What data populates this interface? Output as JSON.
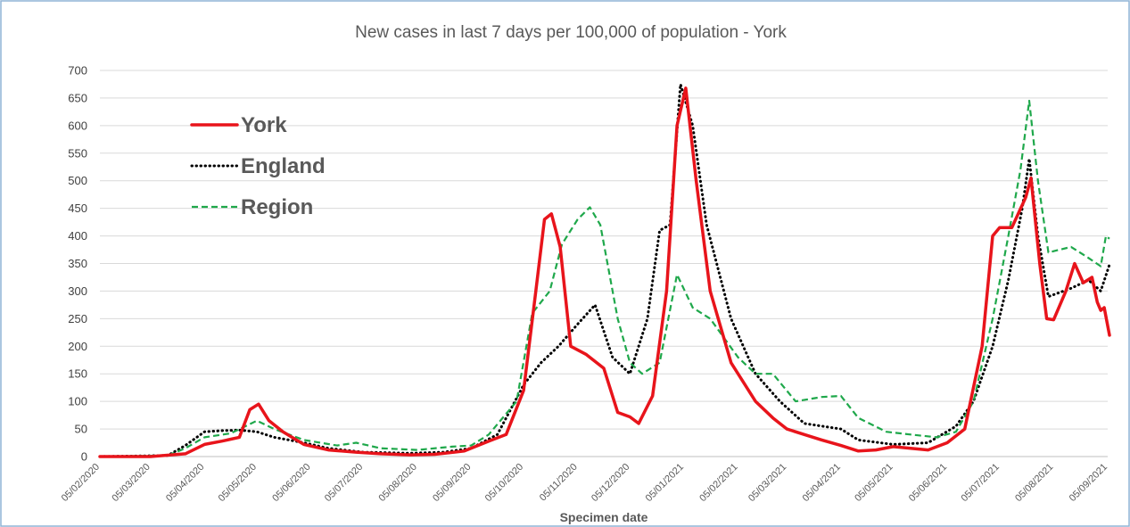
{
  "chart_data": {
    "type": "line",
    "title": "New cases in last 7 days per 100,000 of population - York",
    "xlabel": "Specimen date",
    "ylabel": "",
    "ylim": [
      0,
      700
    ],
    "yticks": [
      0,
      50,
      100,
      150,
      200,
      250,
      300,
      350,
      400,
      450,
      500,
      550,
      600,
      650,
      700
    ],
    "xlim": [
      "2020-02-05",
      "2021-09-05"
    ],
    "xticks": [
      "05/02/2020",
      "05/03/2020",
      "05/04/2020",
      "05/05/2020",
      "05/06/2020",
      "05/07/2020",
      "05/08/2020",
      "05/09/2020",
      "05/10/2020",
      "05/11/2020",
      "05/12/2020",
      "05/01/2021",
      "05/02/2021",
      "05/03/2021",
      "05/04/2021",
      "05/05/2021",
      "05/06/2021",
      "05/07/2021",
      "05/08/2021",
      "05/09/2021"
    ],
    "grid": "horizontal",
    "legend_position": "top-left",
    "series": [
      {
        "name": "York",
        "color": "#e8141b",
        "style": "solid",
        "points": [
          [
            "2020-02-05",
            0
          ],
          [
            "2020-03-05",
            0
          ],
          [
            "2020-03-25",
            5
          ],
          [
            "2020-04-05",
            22
          ],
          [
            "2020-04-15",
            28
          ],
          [
            "2020-04-25",
            35
          ],
          [
            "2020-05-01",
            85
          ],
          [
            "2020-05-06",
            95
          ],
          [
            "2020-05-12",
            65
          ],
          [
            "2020-05-20",
            45
          ],
          [
            "2020-06-01",
            22
          ],
          [
            "2020-06-15",
            12
          ],
          [
            "2020-07-01",
            8
          ],
          [
            "2020-07-15",
            5
          ],
          [
            "2020-08-01",
            3
          ],
          [
            "2020-08-15",
            4
          ],
          [
            "2020-09-01",
            10
          ],
          [
            "2020-09-15",
            28
          ],
          [
            "2020-09-25",
            40
          ],
          [
            "2020-10-05",
            120
          ],
          [
            "2020-10-12",
            300
          ],
          [
            "2020-10-17",
            430
          ],
          [
            "2020-10-21",
            440
          ],
          [
            "2020-10-26",
            380
          ],
          [
            "2020-11-01",
            200
          ],
          [
            "2020-11-10",
            185
          ],
          [
            "2020-11-20",
            160
          ],
          [
            "2020-11-28",
            80
          ],
          [
            "2020-12-05",
            72
          ],
          [
            "2020-12-10",
            60
          ],
          [
            "2020-12-18",
            110
          ],
          [
            "2020-12-26",
            300
          ],
          [
            "2021-01-01",
            600
          ],
          [
            "2021-01-06",
            668
          ],
          [
            "2021-01-12",
            500
          ],
          [
            "2021-01-20",
            300
          ],
          [
            "2021-02-01",
            170
          ],
          [
            "2021-02-15",
            100
          ],
          [
            "2021-02-25",
            70
          ],
          [
            "2021-03-05",
            50
          ],
          [
            "2021-03-15",
            40
          ],
          [
            "2021-03-25",
            30
          ],
          [
            "2021-04-05",
            20
          ],
          [
            "2021-04-15",
            10
          ],
          [
            "2021-04-25",
            12
          ],
          [
            "2021-05-05",
            18
          ],
          [
            "2021-05-15",
            15
          ],
          [
            "2021-05-25",
            12
          ],
          [
            "2021-06-05",
            25
          ],
          [
            "2021-06-15",
            50
          ],
          [
            "2021-06-25",
            200
          ],
          [
            "2021-07-01",
            400
          ],
          [
            "2021-07-05",
            415
          ],
          [
            "2021-07-12",
            415
          ],
          [
            "2021-07-20",
            470
          ],
          [
            "2021-07-23",
            505
          ],
          [
            "2021-07-28",
            350
          ],
          [
            "2021-08-01",
            250
          ],
          [
            "2021-08-05",
            248
          ],
          [
            "2021-08-12",
            300
          ],
          [
            "2021-08-17",
            350
          ],
          [
            "2021-08-22",
            315
          ],
          [
            "2021-08-27",
            325
          ],
          [
            "2021-08-30",
            280
          ],
          [
            "2021-09-01",
            265
          ],
          [
            "2021-09-03",
            270
          ],
          [
            "2021-09-06",
            220
          ]
        ]
      },
      {
        "name": "England",
        "color": "#000000",
        "style": "dotted",
        "points": [
          [
            "2020-02-05",
            0
          ],
          [
            "2020-03-15",
            2
          ],
          [
            "2020-03-25",
            20
          ],
          [
            "2020-04-05",
            45
          ],
          [
            "2020-04-15",
            47
          ],
          [
            "2020-04-25",
            48
          ],
          [
            "2020-05-05",
            45
          ],
          [
            "2020-05-15",
            35
          ],
          [
            "2020-06-01",
            25
          ],
          [
            "2020-06-15",
            15
          ],
          [
            "2020-07-05",
            8
          ],
          [
            "2020-08-01",
            6
          ],
          [
            "2020-08-20",
            8
          ],
          [
            "2020-09-05",
            15
          ],
          [
            "2020-09-20",
            40
          ],
          [
            "2020-10-05",
            130
          ],
          [
            "2020-10-15",
            170
          ],
          [
            "2020-10-25",
            200
          ],
          [
            "2020-11-05",
            240
          ],
          [
            "2020-11-15",
            275
          ],
          [
            "2020-11-25",
            180
          ],
          [
            "2020-12-05",
            150
          ],
          [
            "2020-12-15",
            250
          ],
          [
            "2020-12-22",
            410
          ],
          [
            "2020-12-28",
            420
          ],
          [
            "2021-01-03",
            675
          ],
          [
            "2021-01-10",
            600
          ],
          [
            "2021-01-18",
            420
          ],
          [
            "2021-02-01",
            250
          ],
          [
            "2021-02-15",
            150
          ],
          [
            "2021-03-01",
            100
          ],
          [
            "2021-03-15",
            60
          ],
          [
            "2021-04-05",
            50
          ],
          [
            "2021-04-15",
            30
          ],
          [
            "2021-05-05",
            22
          ],
          [
            "2021-05-25",
            25
          ],
          [
            "2021-06-10",
            55
          ],
          [
            "2021-06-20",
            100
          ],
          [
            "2021-07-01",
            200
          ],
          [
            "2021-07-10",
            320
          ],
          [
            "2021-07-18",
            450
          ],
          [
            "2021-07-22",
            540
          ],
          [
            "2021-07-27",
            400
          ],
          [
            "2021-08-02",
            290
          ],
          [
            "2021-08-15",
            305
          ],
          [
            "2021-08-25",
            320
          ],
          [
            "2021-09-01",
            300
          ],
          [
            "2021-09-06",
            348
          ]
        ]
      },
      {
        "name": "Region",
        "color": "#1fa84b",
        "style": "dashed",
        "points": [
          [
            "2020-02-05",
            0
          ],
          [
            "2020-03-15",
            2
          ],
          [
            "2020-03-25",
            15
          ],
          [
            "2020-04-05",
            35
          ],
          [
            "2020-04-20",
            42
          ],
          [
            "2020-05-05",
            65
          ],
          [
            "2020-05-15",
            50
          ],
          [
            "2020-06-01",
            30
          ],
          [
            "2020-06-20",
            20
          ],
          [
            "2020-07-01",
            25
          ],
          [
            "2020-07-15",
            15
          ],
          [
            "2020-08-05",
            12
          ],
          [
            "2020-08-25",
            18
          ],
          [
            "2020-09-05",
            20
          ],
          [
            "2020-09-15",
            40
          ],
          [
            "2020-10-01",
            100
          ],
          [
            "2020-10-10",
            260
          ],
          [
            "2020-10-20",
            300
          ],
          [
            "2020-10-27",
            385
          ],
          [
            "2020-11-05",
            430
          ],
          [
            "2020-11-12",
            452
          ],
          [
            "2020-11-18",
            420
          ],
          [
            "2020-11-28",
            250
          ],
          [
            "2020-12-05",
            170
          ],
          [
            "2020-12-12",
            150
          ],
          [
            "2020-12-22",
            170
          ],
          [
            "2021-01-01",
            330
          ],
          [
            "2021-01-10",
            270
          ],
          [
            "2021-01-20",
            250
          ],
          [
            "2021-02-05",
            180
          ],
          [
            "2021-02-15",
            150
          ],
          [
            "2021-02-25",
            150
          ],
          [
            "2021-03-10",
            100
          ],
          [
            "2021-03-25",
            108
          ],
          [
            "2021-04-05",
            110
          ],
          [
            "2021-04-15",
            70
          ],
          [
            "2021-05-01",
            45
          ],
          [
            "2021-05-15",
            40
          ],
          [
            "2021-05-30",
            35
          ],
          [
            "2021-06-10",
            45
          ],
          [
            "2021-06-20",
            100
          ],
          [
            "2021-07-01",
            250
          ],
          [
            "2021-07-10",
            400
          ],
          [
            "2021-07-17",
            520
          ],
          [
            "2021-07-22",
            645
          ],
          [
            "2021-07-27",
            500
          ],
          [
            "2021-08-02",
            370
          ],
          [
            "2021-08-15",
            380
          ],
          [
            "2021-08-25",
            360
          ],
          [
            "2021-09-01",
            345
          ],
          [
            "2021-09-04",
            400
          ],
          [
            "2021-09-06",
            395
          ]
        ]
      }
    ]
  }
}
